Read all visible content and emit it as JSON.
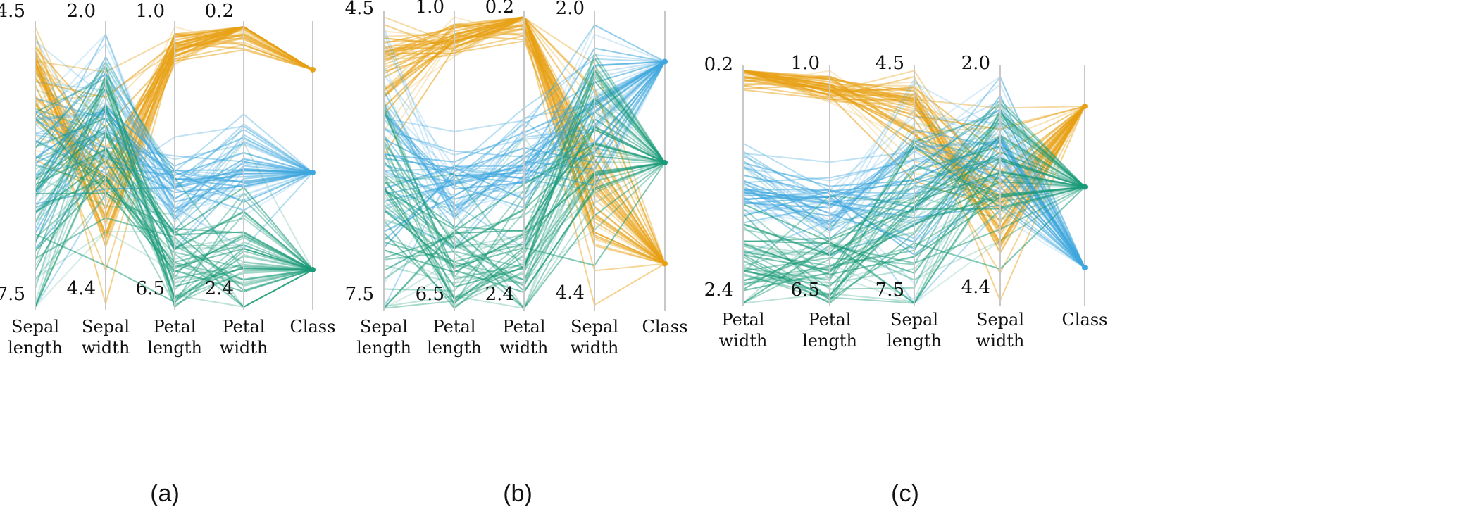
{
  "colors": {
    "setosa": "#e8a116",
    "versicolor": "#3fa7de",
    "virginica": "#1a9a78",
    "axis": "#c8c8c8"
  },
  "chart_data": [
    {
      "type": "parallel-coordinates",
      "panel_label": "(a)",
      "axes": [
        {
          "label": [
            "Sepal",
            "length"
          ],
          "top": "4.5",
          "bottom": "7.5",
          "range": [
            4.5,
            7.5
          ]
        },
        {
          "label": [
            "Sepal",
            "width"
          ],
          "top": "2.0",
          "bottom": "4.4",
          "range": [
            2.0,
            4.4
          ]
        },
        {
          "label": [
            "Petal",
            "length"
          ],
          "top": "1.0",
          "bottom": "6.5",
          "range": [
            1.0,
            6.5
          ]
        },
        {
          "label": [
            "Petal",
            "width"
          ],
          "top": "0.2",
          "bottom": "2.4",
          "range": [
            0.2,
            2.4
          ]
        },
        {
          "label": [
            "Class"
          ],
          "top": "",
          "bottom": "",
          "range": [
            0,
            1
          ]
        }
      ],
      "class_positions": {
        "setosa": 0.16,
        "versicolor": 0.52,
        "virginica": 0.86
      }
    },
    {
      "type": "parallel-coordinates",
      "panel_label": "(b)",
      "axes": [
        {
          "label": [
            "Sepal",
            "length"
          ],
          "top": "4.5",
          "bottom": "7.5",
          "range": [
            4.5,
            7.5
          ]
        },
        {
          "label": [
            "Petal",
            "length"
          ],
          "top": "1.0",
          "bottom": "6.5",
          "range": [
            1.0,
            6.5
          ]
        },
        {
          "label": [
            "Petal",
            "width"
          ],
          "top": "0.2",
          "bottom": "2.4",
          "range": [
            0.2,
            2.4
          ]
        },
        {
          "label": [
            "Sepal",
            "width"
          ],
          "top": "2.0",
          "bottom": "4.4",
          "range": [
            2.0,
            4.4
          ]
        },
        {
          "label": [
            "Class"
          ],
          "top": "",
          "bottom": "",
          "range": [
            0,
            1
          ]
        }
      ],
      "class_positions": {
        "setosa": 0.84,
        "versicolor": 0.16,
        "virginica": 0.5
      }
    },
    {
      "type": "parallel-coordinates",
      "panel_label": "(c)",
      "axes": [
        {
          "label": [
            "Petal",
            "width"
          ],
          "top": "0.2",
          "bottom": "2.4",
          "range": [
            0.2,
            2.4
          ]
        },
        {
          "label": [
            "Petal",
            "length"
          ],
          "top": "1.0",
          "bottom": "6.5",
          "range": [
            1.0,
            6.5
          ]
        },
        {
          "label": [
            "Sepal",
            "length"
          ],
          "top": "4.5",
          "bottom": "7.5",
          "range": [
            4.5,
            7.5
          ]
        },
        {
          "label": [
            "Sepal",
            "width"
          ],
          "top": "2.0",
          "bottom": "4.4",
          "range": [
            2.0,
            4.4
          ]
        },
        {
          "label": [
            "Class"
          ],
          "top": "",
          "bottom": "",
          "range": [
            0,
            1
          ]
        }
      ],
      "class_positions": {
        "setosa": 0.16,
        "versicolor": 0.84,
        "virginica": 0.5
      }
    }
  ]
}
